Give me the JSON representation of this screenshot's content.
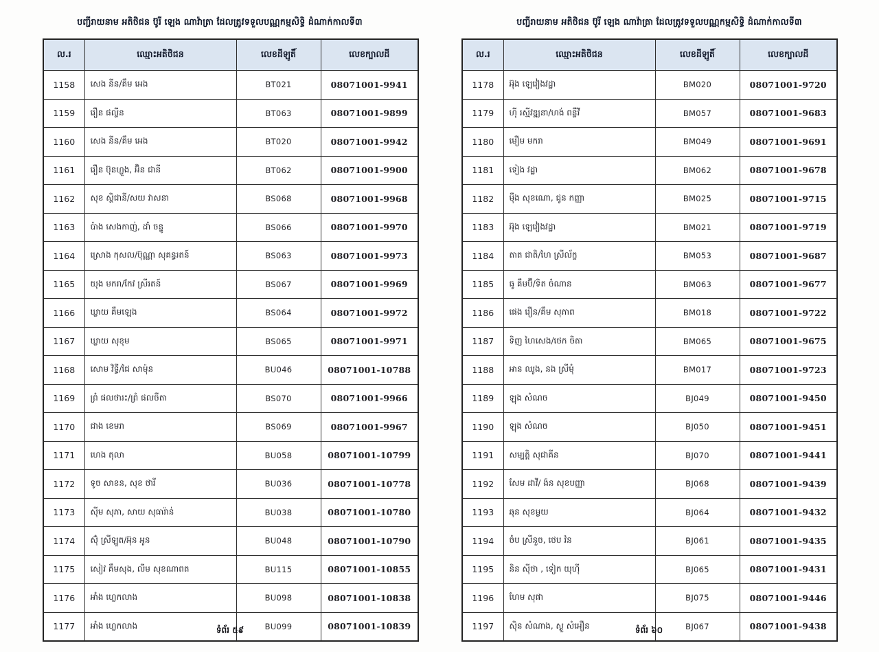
{
  "colors": {
    "header_bg": "#dbe5f1",
    "border": "#2e2e2e",
    "title_text": "#10182a"
  },
  "pages": [
    {
      "title": "បញ្ជីរាយនាម អតិថិជន ប៊ូរី ឡេង ណាវ៉ាត្រា ដែលត្រូវទទួលបណ្ណកម្មសិទ្ធិ ដំណាក់កាលទី៣",
      "footer": "ទំព័រ ៥៩",
      "table": {
        "headers": [
          "ល.រ",
          "ឈ្មោះអតិថិជន",
          "លេខដីឡូតិ៍",
          "លេខក្បាលដី"
        ],
        "rows": [
          {
            "no": "1158",
            "name": "សេង នីន/គឹម អេង",
            "lot": "BT021",
            "parcel": "08071001-9941"
          },
          {
            "no": "1159",
            "name": "រឿន ផល្លីន",
            "lot": "BT063",
            "parcel": "08071001-9899"
          },
          {
            "no": "1160",
            "name": "សេង នីន/គឹម អេង",
            "lot": "BT020",
            "parcel": "08071001-9942"
          },
          {
            "no": "1161",
            "name": "រឿន ប៊ុនហ្លួង, អ៊ិន ជានី",
            "lot": "BT062",
            "parcel": "08071001-9900"
          },
          {
            "no": "1162",
            "name": "សុខ ស្ថិជានី/សយ វាសនា",
            "lot": "BS068",
            "parcel": "08071001-9968"
          },
          {
            "no": "1163",
            "name": "ប៉ាង សេងកាញ់, ដាំ ចន្ទូ",
            "lot": "BS066",
            "parcel": "08071001-9970"
          },
          {
            "no": "1164",
            "name": "ស្រោង កុសល/ប៊ុណ្ណា សុគន្ធរតន៍",
            "lot": "BS063",
            "parcel": "08071001-9973"
          },
          {
            "no": "1165",
            "name": "យុង មករា/កែវ ស្រីរតន៍",
            "lot": "BS067",
            "parcel": "08071001-9969"
          },
          {
            "no": "1166",
            "name": "ឃ្លាយ គឹមឡេង",
            "lot": "BS064",
            "parcel": "08071001-9972"
          },
          {
            "no": "1167",
            "name": "ឃ្លាយ សុខុម",
            "lot": "BS065",
            "parcel": "08071001-9971"
          },
          {
            "no": "1168",
            "name": "សោម វិទ្ធី/ជៃ សាម៉ុន",
            "lot": "BU046",
            "parcel": "08071001-10788"
          },
          {
            "no": "1169",
            "name": "ព្រំ ផលថារះ/ព្រំ ផលចឺតា",
            "lot": "BS070",
            "parcel": "08071001-9966"
          },
          {
            "no": "1170",
            "name": "ជាង ខេមរា",
            "lot": "BS069",
            "parcel": "08071001-9967"
          },
          {
            "no": "1171",
            "name": "ហេង តុលា",
            "lot": "BU058",
            "parcel": "08071001-10799"
          },
          {
            "no": "1172",
            "name": "ទូច សាខន, សុខ ថារី",
            "lot": "BU036",
            "parcel": "08071001-10778"
          },
          {
            "no": "1173",
            "name": "ស៊ីម សុភា, សាយ សុធារ៉ាន់",
            "lot": "BU038",
            "parcel": "08071001-10780"
          },
          {
            "no": "1174",
            "name": "ស៊ុំ ស្រីឡួត/អ៊ុន អូន",
            "lot": "BU048",
            "parcel": "08071001-10790"
          },
          {
            "no": "1175",
            "name": "សៀវ គឹមសុង, លីម សុខណាពត",
            "lot": "BU115",
            "parcel": "08071001-10855"
          },
          {
            "no": "1176",
            "name": "អាំង ហ្លេកលាង",
            "lot": "BU098",
            "parcel": "08071001-10838"
          },
          {
            "no": "1177",
            "name": "អាំង ហ្លេកលាង",
            "lot": "BU099",
            "parcel": "08071001-10839"
          }
        ]
      }
    },
    {
      "title": "បញ្ជីរាយនាម អតិថិជន ប៊ូរី ឡេង ណាវ៉ាត្រា ដែលត្រូវទទួលបណ្ណកម្មសិទ្ធិ ដំណាក់កាលទី៣",
      "footer": "ទំព័រ ៦០",
      "table": {
        "headers": [
          "ល.រ",
          "ឈ្មោះអតិថិជន",
          "លេខដីឡូតិ៍",
          "លេខក្បាលដី"
        ],
        "rows": [
          {
            "no": "1178",
            "name": "អ៊ុង ឡេវៀងវដ្ឋា",
            "lot": "BM020",
            "parcel": "08071001-9720"
          },
          {
            "no": "1179",
            "name": "ហ៊ី រស្មីវឌ្ឍនា/ហង់ ពន្លឺវី",
            "lot": "BM057",
            "parcel": "08071001-9683"
          },
          {
            "no": "1180",
            "name": "មឿម មករា",
            "lot": "BM049",
            "parcel": "08071001-9691"
          },
          {
            "no": "1181",
            "name": "ទៀង វដ្ឋា",
            "lot": "BM062",
            "parcel": "08071001-9678"
          },
          {
            "no": "1182",
            "name": "ម៉ឺង សុខណោ, ជូន កញ្ញា",
            "lot": "BM025",
            "parcel": "08071001-9715"
          },
          {
            "no": "1183",
            "name": "អ៊ុង ឡេវៀងវដ្ឋា",
            "lot": "BM021",
            "parcel": "08071001-9719"
          },
          {
            "no": "1184",
            "name": "តាត ជាតិ/ហៃ ស្រីល័ក្ខ",
            "lot": "BM053",
            "parcel": "08071001-9687"
          },
          {
            "no": "1185",
            "name": "ធូ គឹមប៊ី/ទិត ចំណាន",
            "lot": "BM063",
            "parcel": "08071001-9677"
          },
          {
            "no": "1186",
            "name": "ផេង រឿន/គឹម សុភាព",
            "lot": "BM018",
            "parcel": "08071001-9722"
          },
          {
            "no": "1187",
            "name": "ទិញ ហៃសេង/ថេក ចិតា",
            "lot": "BM065",
            "parcel": "08071001-9675"
          },
          {
            "no": "1188",
            "name": "អាន ឈូង, នង ស្រីមុំ",
            "lot": "BM017",
            "parcel": "08071001-9723"
          },
          {
            "no": "1189",
            "name": "ឡុង សំណច",
            "lot": "BJ049",
            "parcel": "08071001-9450"
          },
          {
            "no": "1190",
            "name": "ឡុង សំណច",
            "lot": "BJ050",
            "parcel": "08071001-9451"
          },
          {
            "no": "1191",
            "name": "សម្បត្តិ សុជាគីន",
            "lot": "BJ070",
            "parcel": "08071001-9441"
          },
          {
            "no": "1192",
            "name": "សែម ដាវី/ ង៉ន សុខបញ្ញា",
            "lot": "BJ068",
            "parcel": "08071001-9439"
          },
          {
            "no": "1193",
            "name": "ឆុន សុខម្លយ",
            "lot": "BJ064",
            "parcel": "08071001-9432"
          },
          {
            "no": "1194",
            "name": "ចំប ស្រីនួច, ថេប វ៉ន",
            "lot": "BJ061",
            "parcel": "08071001-9435"
          },
          {
            "no": "1195",
            "name": "និន ស៊ីថា , ទៀក យុហ៊ី",
            "lot": "BJ065",
            "parcel": "08071001-9431"
          },
          {
            "no": "1196",
            "name": "ហែម សុផា",
            "lot": "BJ075",
            "parcel": "08071001-9446"
          },
          {
            "no": "1197",
            "name": "ស៊ិន សំណាង, ស្ងួ សំអឿន",
            "lot": "BJ067",
            "parcel": "08071001-9438"
          }
        ]
      }
    }
  ]
}
